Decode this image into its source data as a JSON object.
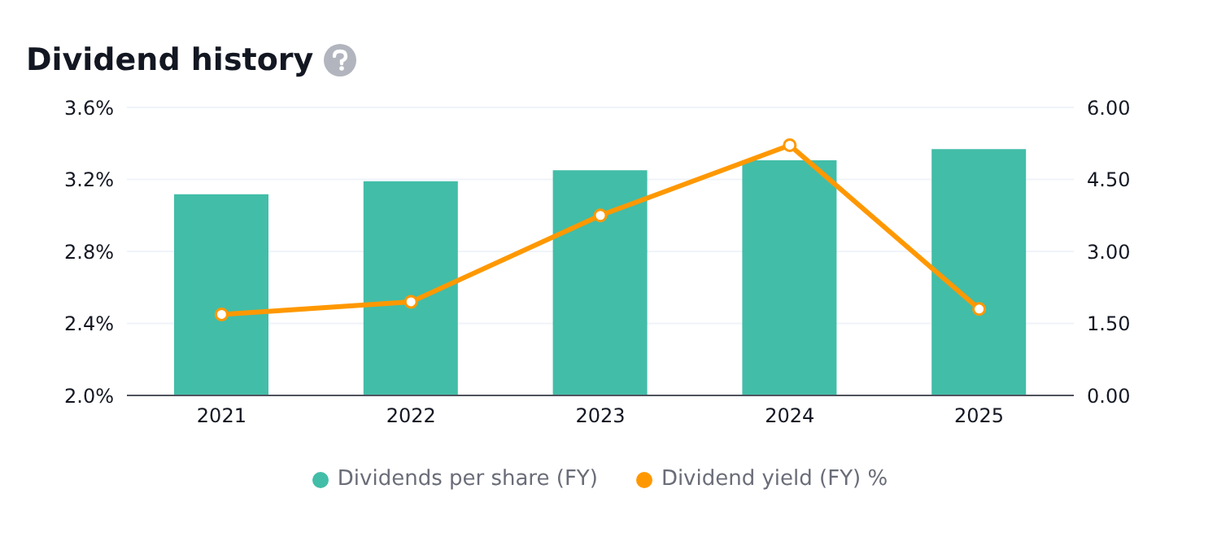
{
  "chart_data": {
    "type": "bar",
    "title": "Dividend history",
    "categories": [
      "2021",
      "2022",
      "2023",
      "2024",
      "2025"
    ],
    "series": [
      {
        "name": "Dividends per share (FY)",
        "axis": "y2",
        "color": "#42bda8",
        "values": [
          4.19,
          4.46,
          4.69,
          4.9,
          5.13
        ]
      },
      {
        "name": "Dividend yield (FY) %",
        "type": "line",
        "axis": "y",
        "color": "#ff9800",
        "values": [
          2.45,
          2.52,
          3.0,
          3.39,
          2.48
        ]
      }
    ],
    "ylim": [
      2.0,
      3.6
    ],
    "yticks": [
      {
        "value": 2.0,
        "label": "2.0%"
      },
      {
        "value": 2.4,
        "label": "2.4%"
      },
      {
        "value": 2.8,
        "label": "2.8%"
      },
      {
        "value": 3.2,
        "label": "3.2%"
      },
      {
        "value": 3.6,
        "label": "3.6%"
      }
    ],
    "y2lim": [
      0,
      6
    ],
    "y2ticks": [
      {
        "value": 0,
        "label": "0.00"
      },
      {
        "value": 1.5,
        "label": "1.50"
      },
      {
        "value": 3,
        "label": "3.00"
      },
      {
        "value": 4.5,
        "label": "4.50"
      },
      {
        "value": 6,
        "label": "6.00"
      }
    ],
    "grid": "y",
    "legend": "bottom",
    "marker": "circle",
    "line_style": "solid"
  }
}
